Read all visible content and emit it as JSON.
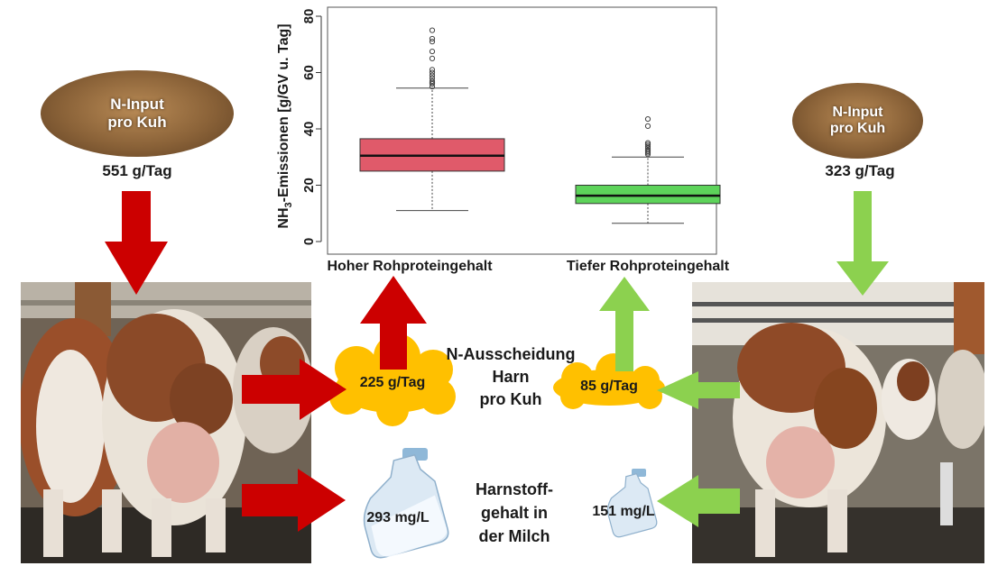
{
  "left_feed": {
    "line1": "N-Input",
    "line2": "pro Kuh",
    "value": "551 g/Tag"
  },
  "right_feed": {
    "line1": "N-Input",
    "line2": "pro Kuh",
    "value": "323 g/Tag"
  },
  "left_urine_value": "225 g/Tag",
  "right_urine_value": "85 g/Tag",
  "center_urine_label": {
    "line1": "N-Ausscheidung",
    "line2": "Harn",
    "line3": "pro Kuh"
  },
  "left_milk_value": "293 mg/L",
  "right_milk_value": "151 mg/L",
  "center_milk_label": {
    "line1": "Harnstoff-",
    "line2": "gehalt in",
    "line3": "der Milch"
  },
  "colors": {
    "high": "#cc0000",
    "low": "#8cd14f",
    "cloud": "#ffc000",
    "box_high": "#e05a6a",
    "box_low": "#5dd35a"
  },
  "chart_data": {
    "type": "boxplot",
    "ylabel_main": "NH",
    "ylabel_sub": "3",
    "ylabel_rest": "-Emissionen [g/GV u. Tag]",
    "ylim": [
      0,
      80
    ],
    "yticks": [
      0,
      20,
      40,
      60,
      80
    ],
    "categories": [
      "Hoher Rohproteingehalt",
      "Tiefer Rohproteingehalt"
    ],
    "boxes": [
      {
        "whisker_low": 11,
        "q1": 25,
        "median": 30.5,
        "q3": 36.5,
        "whisker_high": 54.5,
        "outliers": [
          55,
          56,
          56.5,
          57,
          58,
          59,
          60,
          61,
          65,
          67.5,
          71,
          72,
          75
        ]
      },
      {
        "whisker_low": 6.5,
        "q1": 13.5,
        "median": 16.3,
        "q3": 20,
        "whisker_high": 30,
        "outliers": [
          31,
          31.5,
          32,
          32.5,
          33.2,
          33.8,
          34.4,
          35,
          41,
          43.5
        ]
      }
    ]
  }
}
